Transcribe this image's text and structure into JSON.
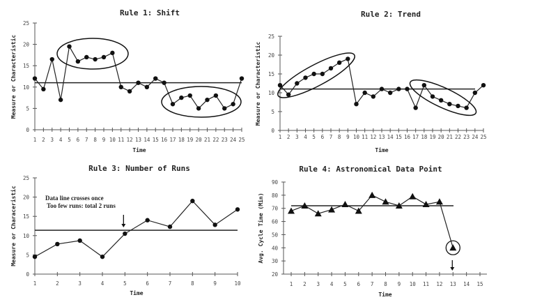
{
  "chart_data": [
    {
      "type": "line",
      "title": "Rule 1: Shift",
      "xlabel": "Time",
      "ylabel": "Measure or Characteristic",
      "x": [
        1,
        2,
        3,
        4,
        5,
        6,
        7,
        8,
        9,
        10,
        11,
        12,
        13,
        14,
        15,
        16,
        17,
        18,
        19,
        20,
        21,
        22,
        23,
        24,
        25
      ],
      "values": [
        12,
        9.5,
        16.5,
        7,
        19.5,
        16,
        17,
        16.5,
        17,
        18,
        10,
        9,
        11,
        10,
        12,
        11,
        6,
        7.5,
        8,
        5,
        7,
        8,
        5,
        6,
        12
      ],
      "ylim": [
        0,
        25
      ],
      "yticks": [
        0,
        5,
        10,
        15,
        20,
        25
      ],
      "center_line": 11,
      "marker": "circle",
      "highlighted_groups": [
        [
          5,
          10
        ],
        [
          17,
          24
        ]
      ],
      "grid": false
    },
    {
      "type": "line",
      "title": "Rule 2: Trend",
      "xlabel": "Time",
      "ylabel": "Measure or Characteristic",
      "x": [
        1,
        2,
        3,
        4,
        5,
        6,
        7,
        8,
        9,
        10,
        11,
        12,
        13,
        14,
        15,
        16,
        17,
        18,
        19,
        20,
        21,
        22,
        23,
        24,
        25
      ],
      "values": [
        12,
        9.5,
        12.5,
        14,
        15,
        15,
        16.5,
        18,
        19,
        7,
        10,
        9,
        11,
        10,
        11,
        11,
        6,
        12,
        9,
        8,
        7,
        6.5,
        6,
        10,
        12
      ],
      "ylim": [
        0,
        25
      ],
      "yticks": [
        0,
        5,
        10,
        15,
        20,
        25
      ],
      "center_line": 11,
      "marker": "circle",
      "highlighted_groups": [
        [
          1,
          9
        ],
        [
          18,
          23
        ]
      ],
      "grid": false
    },
    {
      "type": "line",
      "title": "Rule 3: Number of Runs",
      "xlabel": "Time",
      "ylabel": "Measure or Characeristic",
      "x": [
        1,
        2,
        3,
        4,
        5,
        6,
        7,
        8,
        9,
        10
      ],
      "values": [
        4.5,
        7.8,
        8.7,
        4.5,
        10.5,
        14,
        12.3,
        19,
        12.8,
        16.8
      ],
      "ylim": [
        0,
        25
      ],
      "yticks": [
        0,
        5,
        10,
        15,
        20,
        25
      ],
      "center_line": 11.4,
      "marker": "circle",
      "annotations": [
        "Data line crosses once",
        "Too few runs: total 2 runs"
      ],
      "arrow_at_x": 5,
      "grid": false
    },
    {
      "type": "line",
      "title": "Rule 4: Astronomical Data Point",
      "xlabel": "Time",
      "ylabel": "Avg. Cycle Time (Min)",
      "x": [
        1,
        2,
        3,
        4,
        5,
        6,
        7,
        8,
        9,
        10,
        11,
        12,
        13
      ],
      "xticks": [
        1,
        2,
        3,
        4,
        5,
        6,
        7,
        8,
        9,
        10,
        11,
        12,
        13,
        14,
        15
      ],
      "values": [
        68,
        72,
        66,
        69,
        73,
        68,
        80,
        75,
        72,
        79,
        73,
        75,
        40
      ],
      "ylim": [
        20,
        90
      ],
      "yticks": [
        20,
        30,
        40,
        50,
        60,
        70,
        80,
        90
      ],
      "center_line": 72,
      "marker": "triangle",
      "highlighted_point": 13,
      "arrow_at_x": 13,
      "grid": false
    }
  ]
}
